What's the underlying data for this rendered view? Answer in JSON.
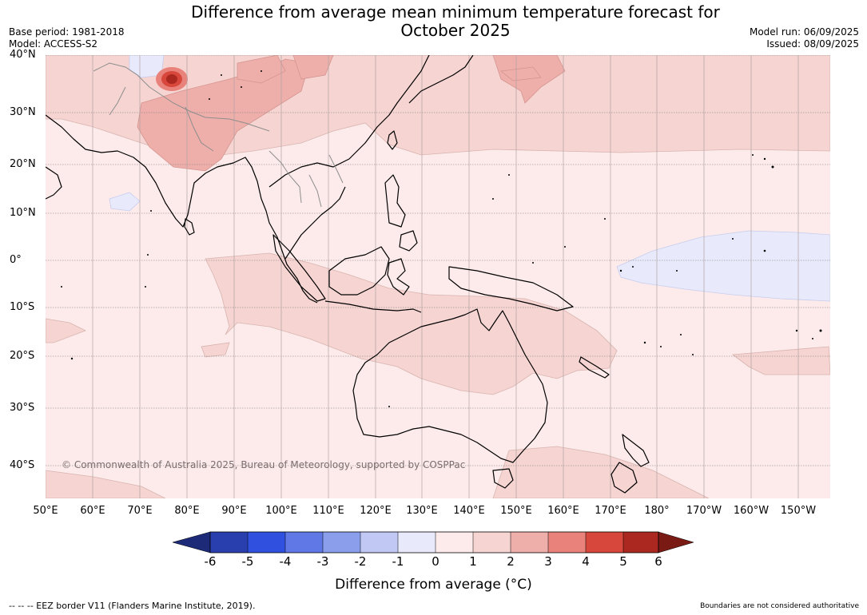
{
  "title_line1": "Difference from average mean minimum temperature forecast for",
  "title_line2": "October 2025",
  "base_period": "Base period: 1981-2018",
  "model": "Model: ACCESS-S2",
  "model_run": "Model run: 06/09/2025",
  "issued": "Issued: 08/09/2025",
  "lat_labels": [
    "40°N",
    "30°N",
    "20°N",
    "10°N",
    "0°",
    "10°S",
    "20°S",
    "30°S",
    "40°S"
  ],
  "lon_labels": [
    "50°E",
    "60°E",
    "70°E",
    "80°E",
    "90°E",
    "100°E",
    "110°E",
    "120°E",
    "130°E",
    "140°E",
    "150°E",
    "160°E",
    "170°E",
    "180°",
    "170°W",
    "160°W",
    "150°W"
  ],
  "copyright": "© Commonwealth of Australia 2025, Bureau of Meteorology, supported by COSPPac",
  "colorbar": {
    "ticks": [
      "-6",
      "-5",
      "-4",
      "-3",
      "-2",
      "-1",
      "0",
      "1",
      "2",
      "3",
      "4",
      "5",
      "6"
    ],
    "colors": [
      "#1c2a78",
      "#2a3fae",
      "#3050e0",
      "#5f78e6",
      "#8a9eec",
      "#c1c8f4",
      "#e8eafb",
      "#fcebea",
      "#f5d4d1",
      "#eeaeaa",
      "#e8827a",
      "#d8473b",
      "#aa2820",
      "#7a1a14"
    ],
    "label": "Difference from average (°C)"
  },
  "footer_left": "--  --  -- EEZ border V11 (Flanders Marine Institute, 2019).",
  "footer_right": "Boundaries are not considered authoritative"
}
